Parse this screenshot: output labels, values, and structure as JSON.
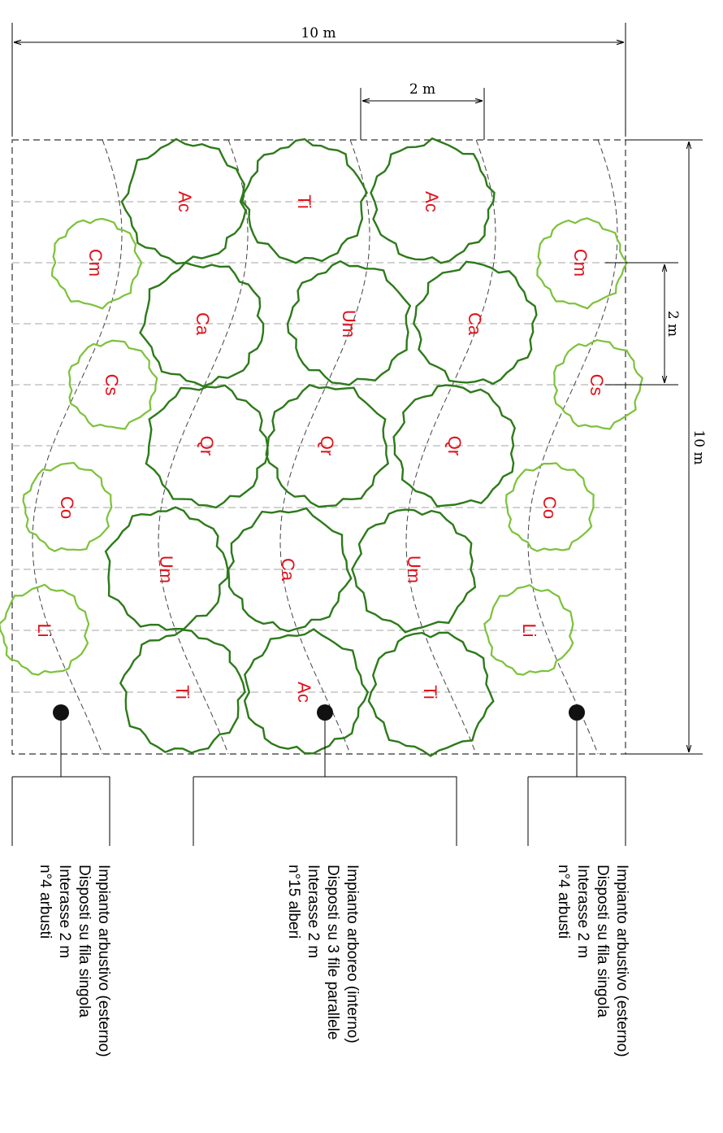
{
  "dimensions": {
    "width_label": "10 m",
    "spacing_label_top": "2 m",
    "spacing_label_right": "2 m",
    "height_label": "10 m"
  },
  "colors": {
    "tree": "#2d7a1a",
    "shrub": "#7cc23a",
    "species_text": "#e0101a",
    "grid": "#b8b8b8"
  },
  "plants": {
    "shrubs_left": [
      "Cm",
      "Cs",
      "Co",
      "Li"
    ],
    "trees_row1": [
      "Ac",
      "Ca",
      "Qr",
      "Um",
      "Ti"
    ],
    "trees_row2": [
      "Ti",
      "Um",
      "Qr",
      "Ca",
      "Ac"
    ],
    "trees_row3": [
      "Ac",
      "Ca",
      "Qr",
      "Um",
      "Ti"
    ],
    "shrubs_right": [
      "Cm",
      "Cs",
      "Co",
      "Li"
    ]
  },
  "legend": {
    "left": [
      "Impianto arbustivo (esterno)",
      "Disposti su fila singola",
      "Interasse 2 m",
      "n°4 arbusti"
    ],
    "center": [
      "Impianto arboreo (interno)",
      "Disposti su 3 file parallele",
      "Interasse 2 m",
      "n°15 alberi"
    ],
    "right": [
      "Impianto arbustivo (esterno)",
      "Disposti su fila singola",
      "Interasse 2 m",
      "n°4 arbusti"
    ]
  }
}
